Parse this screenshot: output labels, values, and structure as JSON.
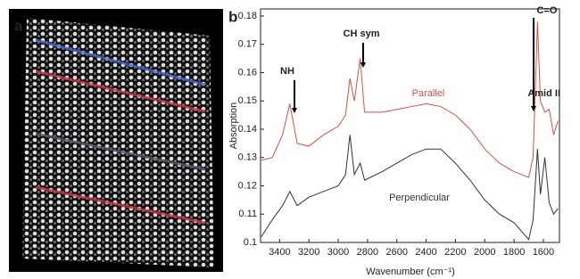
{
  "panels": [
    "a",
    "b"
  ],
  "chart_data": {
    "type": "line",
    "x_label": "Wavenumber (cm⁻¹)",
    "y_label": "Absorption",
    "x": [
      3525,
      3450,
      3380,
      3330,
      3280,
      3200,
      3100,
      3000,
      2950,
      2920,
      2890,
      2850,
      2820,
      2700,
      2600,
      2500,
      2400,
      2300,
      2200,
      2100,
      2000,
      1900,
      1800,
      1750,
      1700,
      1670,
      1640,
      1620,
      1590,
      1560,
      1530,
      1500
    ],
    "series": [
      {
        "name": "Parallel",
        "color": "#d9503e",
        "values": [
          0.129,
          0.13,
          0.138,
          0.149,
          0.135,
          0.134,
          0.138,
          0.141,
          0.145,
          0.158,
          0.15,
          0.165,
          0.146,
          0.146,
          0.147,
          0.148,
          0.149,
          0.148,
          0.145,
          0.14,
          0.133,
          0.128,
          0.125,
          0.124,
          0.123,
          0.13,
          0.178,
          0.15,
          0.146,
          0.147,
          0.138,
          0.143
        ]
      },
      {
        "name": "Perpendicular",
        "color": "#333333",
        "values": [
          0.102,
          0.108,
          0.113,
          0.118,
          0.113,
          0.116,
          0.118,
          0.12,
          0.124,
          0.138,
          0.124,
          0.128,
          0.122,
          0.125,
          0.128,
          0.131,
          0.133,
          0.133,
          0.128,
          0.122,
          0.115,
          0.11,
          0.107,
          0.104,
          0.101,
          0.108,
          0.133,
          0.117,
          0.13,
          0.114,
          0.11,
          0.112
        ]
      }
    ],
    "annotations": [
      "NH",
      "CH sym",
      "C=O",
      "Amid II"
    ],
    "xlim": [
      3530,
      1490
    ],
    "xticks": [
      3400,
      3200,
      3000,
      2800,
      2600,
      2400,
      2200,
      2000,
      1800,
      1600
    ],
    "ylim": [
      0.1,
      0.1825
    ],
    "yticks": [
      0.1,
      0.11,
      0.12,
      0.13,
      0.14,
      0.15,
      0.16,
      0.17,
      0.18
    ]
  }
}
